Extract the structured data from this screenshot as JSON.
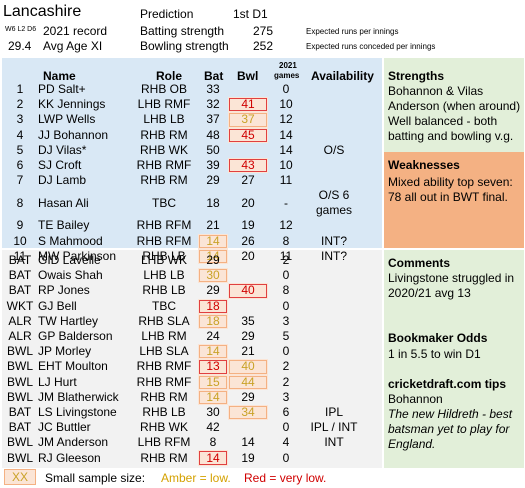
{
  "header": {
    "team": "Lancashire",
    "record_code": "W6 L2 D6",
    "record_label": "2021 record",
    "avg_age": "29.4",
    "avg_age_label": "Avg Age XI",
    "prediction_label": "Prediction",
    "prediction_value": "1st D1",
    "batting_label": "Batting strength",
    "batting_value": "275",
    "bowling_label": "Bowling strength",
    "bowling_value": "252",
    "batting_note": "Expected runs per innings",
    "bowling_note": "Expected runs conceded per innings"
  },
  "columns": {
    "name": "Name",
    "role": "Role",
    "bat": "Bat",
    "bwl": "Bwl",
    "games_year": "2021",
    "games": "games",
    "availability": "Availability"
  },
  "xi": [
    {
      "num": "1",
      "name": "PD Salt+",
      "role": "RHB OB",
      "bat": "33",
      "bwl": "",
      "games": "0",
      "avail": "",
      "bat_flag": "",
      "bwl_flag": ""
    },
    {
      "num": "2",
      "name": "KK Jennings",
      "role": "LHB RMF",
      "bat": "32",
      "bwl": "41",
      "games": "10",
      "avail": "",
      "bat_flag": "",
      "bwl_flag": "red"
    },
    {
      "num": "3",
      "name": "LWP Wells",
      "role": "LHB LB",
      "bat": "37",
      "bwl": "37",
      "games": "12",
      "avail": "",
      "bat_flag": "",
      "bwl_flag": "amber"
    },
    {
      "num": "4",
      "name": "JJ Bohannon",
      "role": "RHB RM",
      "bat": "48",
      "bwl": "45",
      "games": "14",
      "avail": "",
      "bat_flag": "",
      "bwl_flag": "red"
    },
    {
      "num": "5",
      "name": "DJ Vilas*",
      "role": "RHB WK",
      "bat": "50",
      "bwl": "",
      "games": "14",
      "avail": "O/S",
      "bat_flag": "",
      "bwl_flag": ""
    },
    {
      "num": "6",
      "name": "SJ Croft",
      "role": "RHB RMF",
      "bat": "39",
      "bwl": "43",
      "games": "10",
      "avail": "",
      "bat_flag": "",
      "bwl_flag": "red"
    },
    {
      "num": "7",
      "name": "DJ Lamb",
      "role": "RHB RM",
      "bat": "29",
      "bwl": "27",
      "games": "11",
      "avail": "",
      "bat_flag": "",
      "bwl_flag": ""
    },
    {
      "num": "8",
      "name": "Hasan Ali",
      "role": "TBC",
      "bat": "18",
      "bwl": "20",
      "games": "-",
      "avail": "O/S 6 games",
      "bat_flag": "",
      "bwl_flag": ""
    },
    {
      "num": "9",
      "name": "TE Bailey",
      "role": "RHB RFM",
      "bat": "21",
      "bwl": "19",
      "games": "12",
      "avail": "",
      "bat_flag": "",
      "bwl_flag": ""
    },
    {
      "num": "10",
      "name": "S Mahmood",
      "role": "RHB RFM",
      "bat": "14",
      "bwl": "26",
      "games": "8",
      "avail": "INT?",
      "bat_flag": "amber",
      "bwl_flag": ""
    },
    {
      "num": "11",
      "name": "MW Parkinson",
      "role": "RHB LB",
      "bat": "14",
      "bwl": "20",
      "games": "11",
      "avail": "INT?",
      "bat_flag": "amber",
      "bwl_flag": ""
    }
  ],
  "squad": [
    {
      "num": "BAT",
      "name": "GID Lavelle",
      "role": "LHB WK",
      "bat": "29",
      "bwl": "",
      "games": "2",
      "avail": "",
      "bat_flag": "",
      "bwl_flag": ""
    },
    {
      "num": "BAT",
      "name": "Owais Shah",
      "role": "LHB LB",
      "bat": "30",
      "bwl": "",
      "games": "0",
      "avail": "",
      "bat_flag": "amber",
      "bwl_flag": ""
    },
    {
      "num": "BAT",
      "name": "RP Jones",
      "role": "RHB LB",
      "bat": "29",
      "bwl": "40",
      "games": "8",
      "avail": "",
      "bat_flag": "",
      "bwl_flag": "red"
    },
    {
      "num": "WKT",
      "name": "GJ Bell",
      "role": "TBC",
      "bat": "18",
      "bwl": "",
      "games": "0",
      "avail": "",
      "bat_flag": "red",
      "bwl_flag": ""
    },
    {
      "num": "ALR",
      "name": "TW Hartley",
      "role": "RHB SLA",
      "bat": "18",
      "bwl": "35",
      "games": "3",
      "avail": "",
      "bat_flag": "amber",
      "bwl_flag": ""
    },
    {
      "num": "ALR",
      "name": "GP Balderson",
      "role": "LHB RM",
      "bat": "24",
      "bwl": "29",
      "games": "5",
      "avail": "",
      "bat_flag": "",
      "bwl_flag": ""
    },
    {
      "num": "BWL",
      "name": "JP Morley",
      "role": "LHB SLA",
      "bat": "14",
      "bwl": "21",
      "games": "0",
      "avail": "",
      "bat_flag": "amber",
      "bwl_flag": ""
    },
    {
      "num": "BWL",
      "name": "EHT Moulton",
      "role": "RHB RMF",
      "bat": "13",
      "bwl": "40",
      "games": "2",
      "avail": "",
      "bat_flag": "red",
      "bwl_flag": "amber"
    },
    {
      "num": "BWL",
      "name": "LJ Hurt",
      "role": "RHB RMF",
      "bat": "15",
      "bwl": "44",
      "games": "2",
      "avail": "",
      "bat_flag": "amber",
      "bwl_flag": "amber"
    },
    {
      "num": "BWL",
      "name": "JM Blatherwick",
      "role": "RHB RM",
      "bat": "14",
      "bwl": "29",
      "games": "3",
      "avail": "",
      "bat_flag": "amber",
      "bwl_flag": ""
    },
    {
      "num": "BAT",
      "name": "LS Livingstone",
      "role": "RHB LB",
      "bat": "30",
      "bwl": "34",
      "games": "6",
      "avail": "IPL",
      "bat_flag": "",
      "bwl_flag": "amber"
    },
    {
      "num": "BAT",
      "name": "JC Buttler",
      "role": "RHB WK",
      "bat": "42",
      "bwl": "",
      "games": "0",
      "avail": "IPL / INT",
      "bat_flag": "",
      "bwl_flag": ""
    },
    {
      "num": "BWL",
      "name": "JM Anderson",
      "role": "LHB RFM",
      "bat": "8",
      "bwl": "14",
      "games": "4",
      "avail": "INT",
      "bat_flag": "",
      "bwl_flag": ""
    },
    {
      "num": "BWL",
      "name": "RJ Gleeson",
      "role": "RHB RM",
      "bat": "14",
      "bwl": "19",
      "games": "0",
      "avail": "",
      "bat_flag": "red",
      "bwl_flag": ""
    }
  ],
  "strengths": {
    "title": "Strengths",
    "lines": [
      "Bohannon & Vilas",
      "Anderson (when around)",
      "Well balanced - both",
      "batting and bowling v.g."
    ]
  },
  "weaknesses": {
    "title": "Weaknesses",
    "lines": [
      "Mixed ability top seven:",
      "78 all out in BWT final."
    ]
  },
  "comments": {
    "title": "Comments",
    "lines": [
      "Livingstone struggled in",
      "2020/21 avg 13"
    ]
  },
  "odds": {
    "title": "Bookmaker Odds",
    "text": "1 in 5.5 to win D1"
  },
  "tips": {
    "title": "cricketdraft.com tips",
    "pick": "Bohannon",
    "lines": [
      "The new Hildreth - best",
      "batsman yet to play for",
      "England."
    ]
  },
  "legend": {
    "box": "XX",
    "text": "Small sample size:",
    "amber": "Amber = low.",
    "red": "Red = very low."
  }
}
